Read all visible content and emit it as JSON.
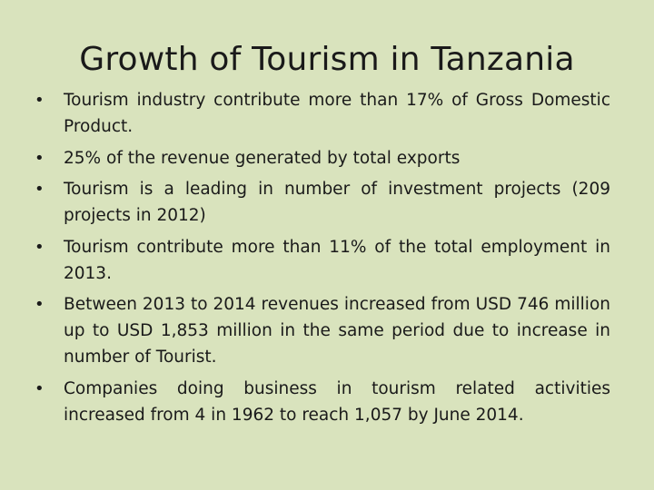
{
  "slide": {
    "title": "Growth of Tourism in Tanzania",
    "bullet_glyph": "•",
    "bullets": [
      "Tourism industry contribute more than 17% of Gross Domestic Product.",
      "25% of the revenue generated by total exports",
      "Tourism is a leading in number of investment projects (209 projects in 2012)",
      "Tourism contribute more than 11% of the total employment in 2013.",
      "Between 2013 to 2014 revenues increased from USD 746 million up to USD 1,853 million in the same period due to increase in number of Tourist.",
      "Companies doing business in tourism related activities increased from 4 in 1962 to reach 1,057 by June 2014."
    ]
  },
  "colors": {
    "background": "#d9e3bd",
    "text": "#1a1a1a"
  }
}
